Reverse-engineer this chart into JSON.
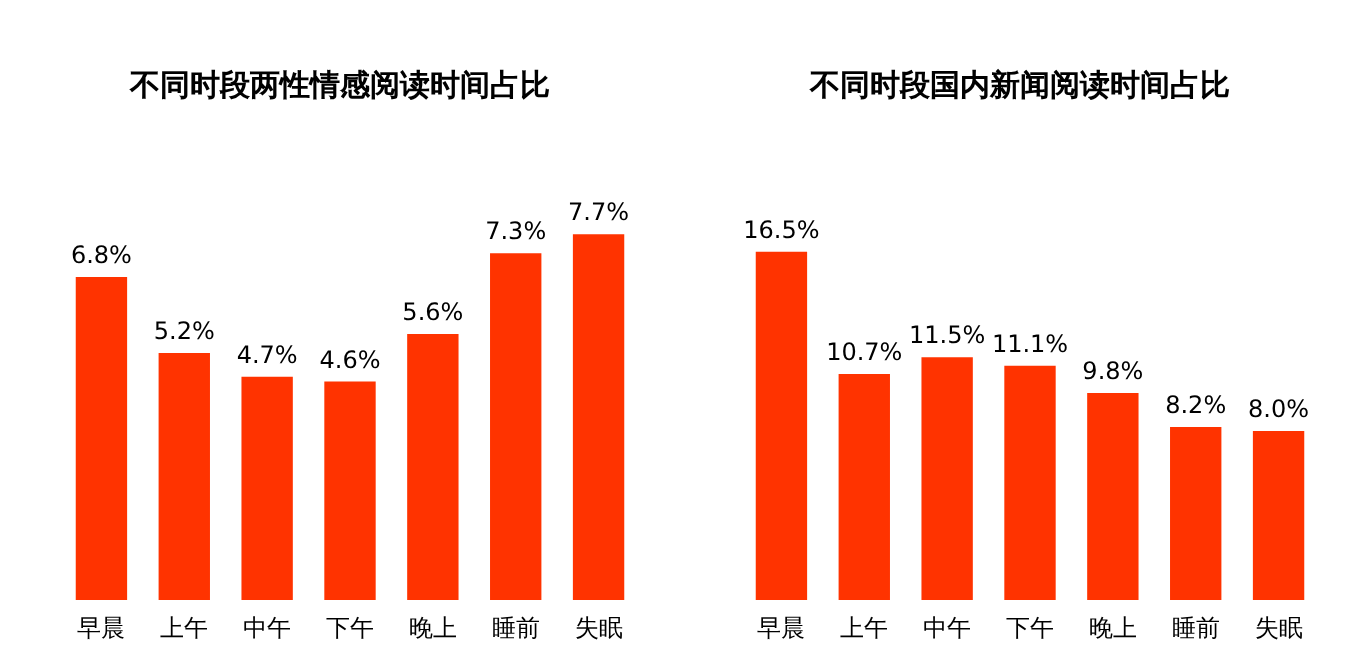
{
  "chart_data": [
    {
      "type": "bar",
      "title": "不同时段两性情感阅读时间占比",
      "categories": [
        "早晨",
        "上午",
        "中午",
        "下午",
        "晚上",
        "睡前",
        "失眠"
      ],
      "values": [
        6.8,
        5.2,
        4.7,
        4.6,
        5.6,
        7.3,
        7.7
      ],
      "value_labels": [
        "6.8%",
        "5.2%",
        "4.7%",
        "4.6%",
        "5.6%",
        "7.3%",
        "7.7%"
      ],
      "color": "#ff3300",
      "grid": false,
      "tick_labels": "x"
    },
    {
      "type": "bar",
      "title": "不同时段国内新闻阅读时间占比",
      "categories": [
        "早晨",
        "上午",
        "中午",
        "下午",
        "晚上",
        "睡前",
        "失眠"
      ],
      "values": [
        16.5,
        10.7,
        11.5,
        11.1,
        9.8,
        8.2,
        8.0
      ],
      "value_labels": [
        "16.5%",
        "10.7%",
        "11.5%",
        "11.1%",
        "9.8%",
        "8.2%",
        "8.0%"
      ],
      "color": "#ff3300",
      "grid": false,
      "tick_labels": "x"
    }
  ]
}
